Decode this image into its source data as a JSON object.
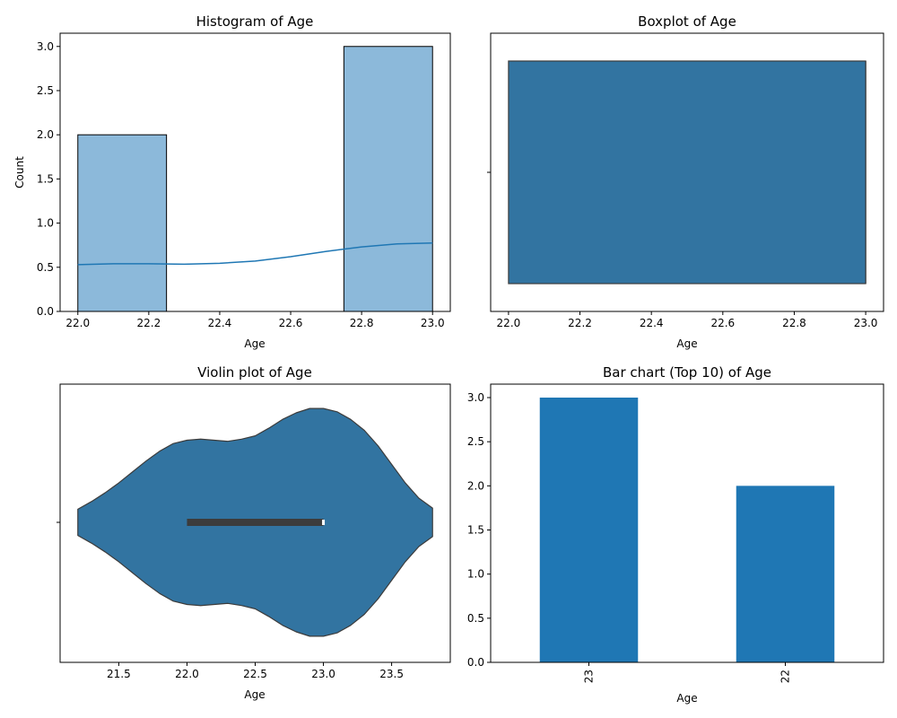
{
  "colors": {
    "hist_fill": "#8cb9da",
    "kde_line": "#1f77b4",
    "seaborn_blue": "#3274a1",
    "bar_fill": "#1f77b4",
    "edge": "#3c3c3c",
    "inner_box": "#3c3c3c"
  },
  "chart_data": [
    {
      "type": "bar",
      "subtype": "histogram",
      "title": "Histogram of Age",
      "xlabel": "Age",
      "ylabel": "Count",
      "bins": [
        {
          "start": 22.0,
          "end": 22.25,
          "count": 2
        },
        {
          "start": 22.25,
          "end": 22.5,
          "count": 0
        },
        {
          "start": 22.5,
          "end": 22.75,
          "count": 0
        },
        {
          "start": 22.75,
          "end": 23.0,
          "count": 3
        }
      ],
      "kde": {
        "x": [
          22.0,
          22.1,
          22.2,
          22.3,
          22.4,
          22.5,
          22.6,
          22.7,
          22.8,
          22.9,
          23.0
        ],
        "y": [
          0.53,
          0.54,
          0.54,
          0.535,
          0.545,
          0.57,
          0.62,
          0.68,
          0.73,
          0.765,
          0.775
        ]
      },
      "xlim": [
        21.95,
        23.05
      ],
      "ylim": [
        0,
        3.15
      ],
      "xticks": [
        "22.0",
        "22.2",
        "22.4",
        "22.6",
        "22.8",
        "23.0"
      ],
      "yticks": [
        "0.0",
        "0.5",
        "1.0",
        "1.5",
        "2.0",
        "2.5",
        "3.0"
      ],
      "grid": false
    },
    {
      "type": "boxplot",
      "title": "Boxplot of Age",
      "xlabel": "Age",
      "box": {
        "q1": 22.0,
        "q3": 23.0,
        "median": 23.0,
        "whisker_low": 22.0,
        "whisker_high": 23.0
      },
      "xlim": [
        21.95,
        23.05
      ],
      "xticks": [
        "22.0",
        "22.2",
        "22.4",
        "22.6",
        "22.8",
        "23.0"
      ],
      "grid": false
    },
    {
      "type": "violin",
      "title": "Violin plot of Age",
      "xlabel": "Age",
      "profile": {
        "x": [
          21.2,
          21.3,
          21.4,
          21.5,
          21.6,
          21.7,
          21.8,
          21.9,
          22.0,
          22.1,
          22.2,
          22.3,
          22.4,
          22.5,
          22.6,
          22.7,
          22.8,
          22.9,
          23.0,
          23.1,
          23.2,
          23.3,
          23.4,
          23.5,
          23.6,
          23.7,
          23.8
        ],
        "halfwidth": [
          0.12,
          0.19,
          0.27,
          0.36,
          0.46,
          0.56,
          0.65,
          0.72,
          0.75,
          0.76,
          0.75,
          0.74,
          0.76,
          0.79,
          0.86,
          0.94,
          1.0,
          1.04,
          1.04,
          1.01,
          0.94,
          0.84,
          0.7,
          0.53,
          0.36,
          0.22,
          0.13
        ]
      },
      "inner_box": {
        "q1": 22.0,
        "q3": 23.0,
        "median": 23.0
      },
      "xlim": [
        21.07,
        23.93
      ],
      "xticks": [
        "21.5",
        "22.0",
        "22.5",
        "23.0",
        "23.5"
      ],
      "grid": false
    },
    {
      "type": "bar",
      "title": "Bar chart (Top 10) of Age",
      "xlabel": "Age",
      "categories": [
        "23",
        "22"
      ],
      "values": [
        3,
        2
      ],
      "ylim": [
        0,
        3.0
      ],
      "yticks": [
        "0.0",
        "0.5",
        "1.0",
        "1.5",
        "2.0",
        "2.5",
        "3.0"
      ],
      "xtick_rotation": "vertical",
      "grid": false
    }
  ]
}
